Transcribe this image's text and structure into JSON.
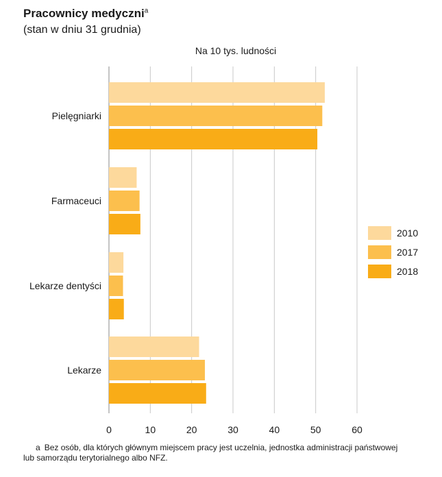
{
  "title": "Pracownicy medyczni",
  "title_marker": "a",
  "subtitle": "(stan w dniu 31 grudnia)",
  "footnote": {
    "marker": "a",
    "line1": "Bez osób, dla których głównym miejscem pracy jest uczelnia, jednostka administracji państwowej",
    "line2": "lub samorządu terytorialnego albo NFZ."
  },
  "chart_data": {
    "type": "bar",
    "orientation": "horizontal",
    "unit_label": "Na 10 tys. ludności",
    "categories": [
      "Pielęgniarki",
      "Farmaceuci",
      "Lekarze dentyści",
      "Lekarze"
    ],
    "series": [
      {
        "name": "2010",
        "color": "#fdd99c",
        "values": [
          52.2,
          6.7,
          3.5,
          21.8
        ]
      },
      {
        "name": "2017",
        "color": "#fcbf4d",
        "values": [
          51.6,
          7.4,
          3.4,
          23.2
        ]
      },
      {
        "name": "2018",
        "color": "#f9ac17",
        "values": [
          50.4,
          7.6,
          3.6,
          23.5
        ]
      }
    ],
    "xlim": [
      0,
      60
    ],
    "xticks": [
      0,
      10,
      20,
      30,
      40,
      50,
      60
    ],
    "grid": "vertical",
    "legend": "right"
  }
}
